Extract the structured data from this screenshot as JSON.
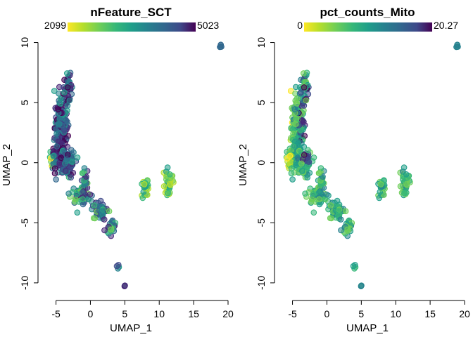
{
  "chart_data": [
    {
      "type": "scatter",
      "title": "nFeature_SCT",
      "xlabel": "UMAP_1",
      "ylabel": "UMAP_2",
      "xlim": [
        -7,
        20
      ],
      "ylim": [
        -11,
        10.5
      ],
      "xticks": [
        "-5",
        "0",
        "5",
        "10",
        "15",
        "20"
      ],
      "yticks": [
        "-10",
        "-5",
        "0",
        "5",
        "10"
      ],
      "colorbar": {
        "min_label": "2099",
        "max_label": "5023",
        "palette": "viridis"
      },
      "colors": [
        "#fde725",
        "#b5de2b",
        "#6ece58",
        "#35b779",
        "#1f9e89",
        "#26828e",
        "#31688e",
        "#3e4989",
        "#482878",
        "#440154"
      ],
      "grid": false,
      "legend": "top colorbar"
    },
    {
      "type": "scatter",
      "title": "pct_counts_Mito",
      "xlabel": "UMAP_1",
      "ylabel": "UMAP_2",
      "xlim": [
        -7,
        20
      ],
      "ylim": [
        -11,
        10.5
      ],
      "xticks": [
        "-5",
        "0",
        "5",
        "10",
        "15",
        "20"
      ],
      "yticks": [
        "-10",
        "-5",
        "0",
        "5",
        "10"
      ],
      "colorbar": {
        "min_label": "0",
        "max_label": "20.27",
        "palette": "viridis"
      },
      "colors": [
        "#fde725",
        "#b5de2b",
        "#6ece58",
        "#35b779",
        "#1f9e89",
        "#26828e",
        "#31688e",
        "#3e4989",
        "#482878",
        "#440154"
      ],
      "grid": false,
      "legend": "top colorbar"
    }
  ]
}
